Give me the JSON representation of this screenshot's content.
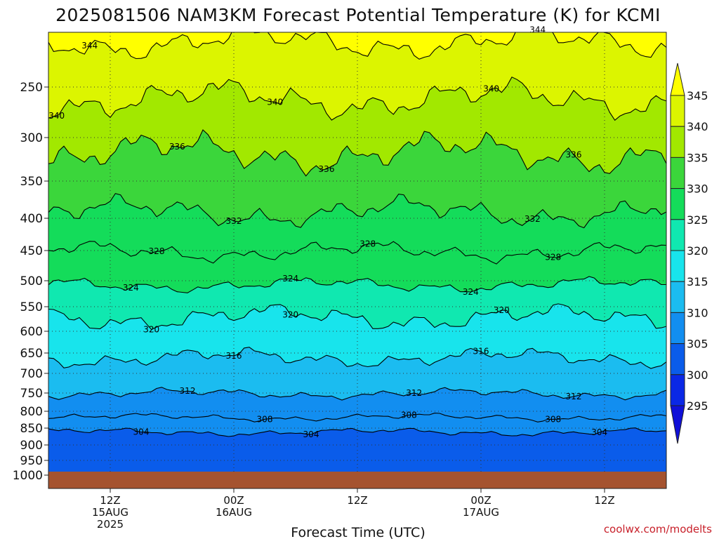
{
  "chart_data": {
    "type": "heatmap",
    "title": "2025081506 NAM3KM Forecast Potential Temperature (K) for KCMI",
    "xlabel": "Forecast Time (UTC)",
    "ylabel": "",
    "y_ticks": [
      "250",
      "300",
      "350",
      "400",
      "450",
      "500",
      "550",
      "600",
      "650",
      "700",
      "750",
      "800",
      "850",
      "900",
      "950",
      "1000"
    ],
    "y_tick_values": [
      250,
      300,
      350,
      400,
      450,
      500,
      550,
      600,
      650,
      700,
      750,
      800,
      850,
      900,
      950,
      1000
    ],
    "x_ticks": [
      {
        "hour": 6,
        "line1": "12Z",
        "line2": "15AUG",
        "line3": "2025"
      },
      {
        "hour": 18,
        "line1": "00Z",
        "line2": "16AUG",
        "line3": ""
      },
      {
        "hour": 30,
        "line1": "12Z",
        "line2": "",
        "line3": ""
      },
      {
        "hour": 42,
        "line1": "00Z",
        "line2": "17AUG",
        "line3": ""
      },
      {
        "hour": 54,
        "line1": "12Z",
        "line2": "",
        "line3": ""
      }
    ],
    "xlim_hours": [
      0,
      60
    ],
    "ylim_hPa": [
      1000,
      200
    ],
    "grid": true,
    "contour_interval": 4,
    "contour_levels": [
      {
        "value": 344,
        "label": "344",
        "base_p": 212,
        "amp": 12
      },
      {
        "value": 340,
        "label": "340",
        "base_p": 262,
        "amp": 16
      },
      {
        "value": 336,
        "label": "336",
        "base_p": 318,
        "amp": 20
      },
      {
        "value": 332,
        "label": "332",
        "base_p": 392,
        "amp": 18
      },
      {
        "value": 328,
        "label": "328",
        "base_p": 452,
        "amp": 14
      },
      {
        "value": 324,
        "label": "324",
        "base_p": 508,
        "amp": 12
      },
      {
        "value": 320,
        "label": "320",
        "base_p": 572,
        "amp": 22
      },
      {
        "value": 316,
        "label": "316",
        "base_p": 662,
        "amp": 20
      },
      {
        "value": 312,
        "label": "312",
        "base_p": 752,
        "amp": 12
      },
      {
        "value": 308,
        "label": "308",
        "base_p": 818,
        "amp": 10
      },
      {
        "value": 304,
        "label": "304",
        "base_p": 862,
        "amp": 10
      }
    ],
    "contour_label_positions": [
      {
        "label": "344",
        "hour": 4.0
      },
      {
        "label": "344",
        "hour": 47.5
      },
      {
        "label": "340",
        "hour": 0.8
      },
      {
        "label": "340",
        "hour": 22.0
      },
      {
        "label": "340",
        "hour": 43.0
      },
      {
        "label": "336",
        "hour": 12.5
      },
      {
        "label": "336",
        "hour": 27.0
      },
      {
        "label": "336",
        "hour": 51.0
      },
      {
        "label": "332",
        "hour": 18.0
      },
      {
        "label": "332",
        "hour": 47.0
      },
      {
        "label": "328",
        "hour": 10.5
      },
      {
        "label": "328",
        "hour": 31.0
      },
      {
        "label": "328",
        "hour": 49.0
      },
      {
        "label": "324",
        "hour": 8.0
      },
      {
        "label": "324",
        "hour": 23.5
      },
      {
        "label": "324",
        "hour": 41.0
      },
      {
        "label": "320",
        "hour": 10.0
      },
      {
        "label": "320",
        "hour": 23.5
      },
      {
        "label": "320",
        "hour": 44.0
      },
      {
        "label": "316",
        "hour": 18.0
      },
      {
        "label": "316",
        "hour": 42.0
      },
      {
        "label": "312",
        "hour": 13.5
      },
      {
        "label": "312",
        "hour": 35.5
      },
      {
        "label": "312",
        "hour": 51.0
      },
      {
        "label": "308",
        "hour": 21.0
      },
      {
        "label": "308",
        "hour": 35.0
      },
      {
        "label": "308",
        "hour": 49.0
      },
      {
        "label": "304",
        "hour": 9.0
      },
      {
        "label": "304",
        "hour": 25.5
      },
      {
        "label": "304",
        "hour": 53.5
      }
    ],
    "colorbar": {
      "ticks": [
        "345",
        "340",
        "335",
        "330",
        "325",
        "320",
        "315",
        "310",
        "305",
        "300",
        "295"
      ],
      "bands": [
        {
          "range": "above 345",
          "color": "#ffff00"
        },
        {
          "range": "340-345",
          "color": "#dcf500"
        },
        {
          "range": "335-340",
          "color": "#a2e800"
        },
        {
          "range": "330-335",
          "color": "#3bd63b"
        },
        {
          "range": "325-330",
          "color": "#14dc5a"
        },
        {
          "range": "320-325",
          "color": "#10e8b0"
        },
        {
          "range": "315-320",
          "color": "#18e4ec"
        },
        {
          "range": "310-315",
          "color": "#1bbcf0"
        },
        {
          "range": "305-310",
          "color": "#128ef0"
        },
        {
          "range": "300-305",
          "color": "#0a5cea"
        },
        {
          "range": "295-300",
          "color": "#0a28e6"
        },
        {
          "range": "below 295",
          "color": "#1010d8"
        }
      ]
    },
    "ground_color": "#a5532f"
  },
  "credit": "coolwx.com/modelts"
}
